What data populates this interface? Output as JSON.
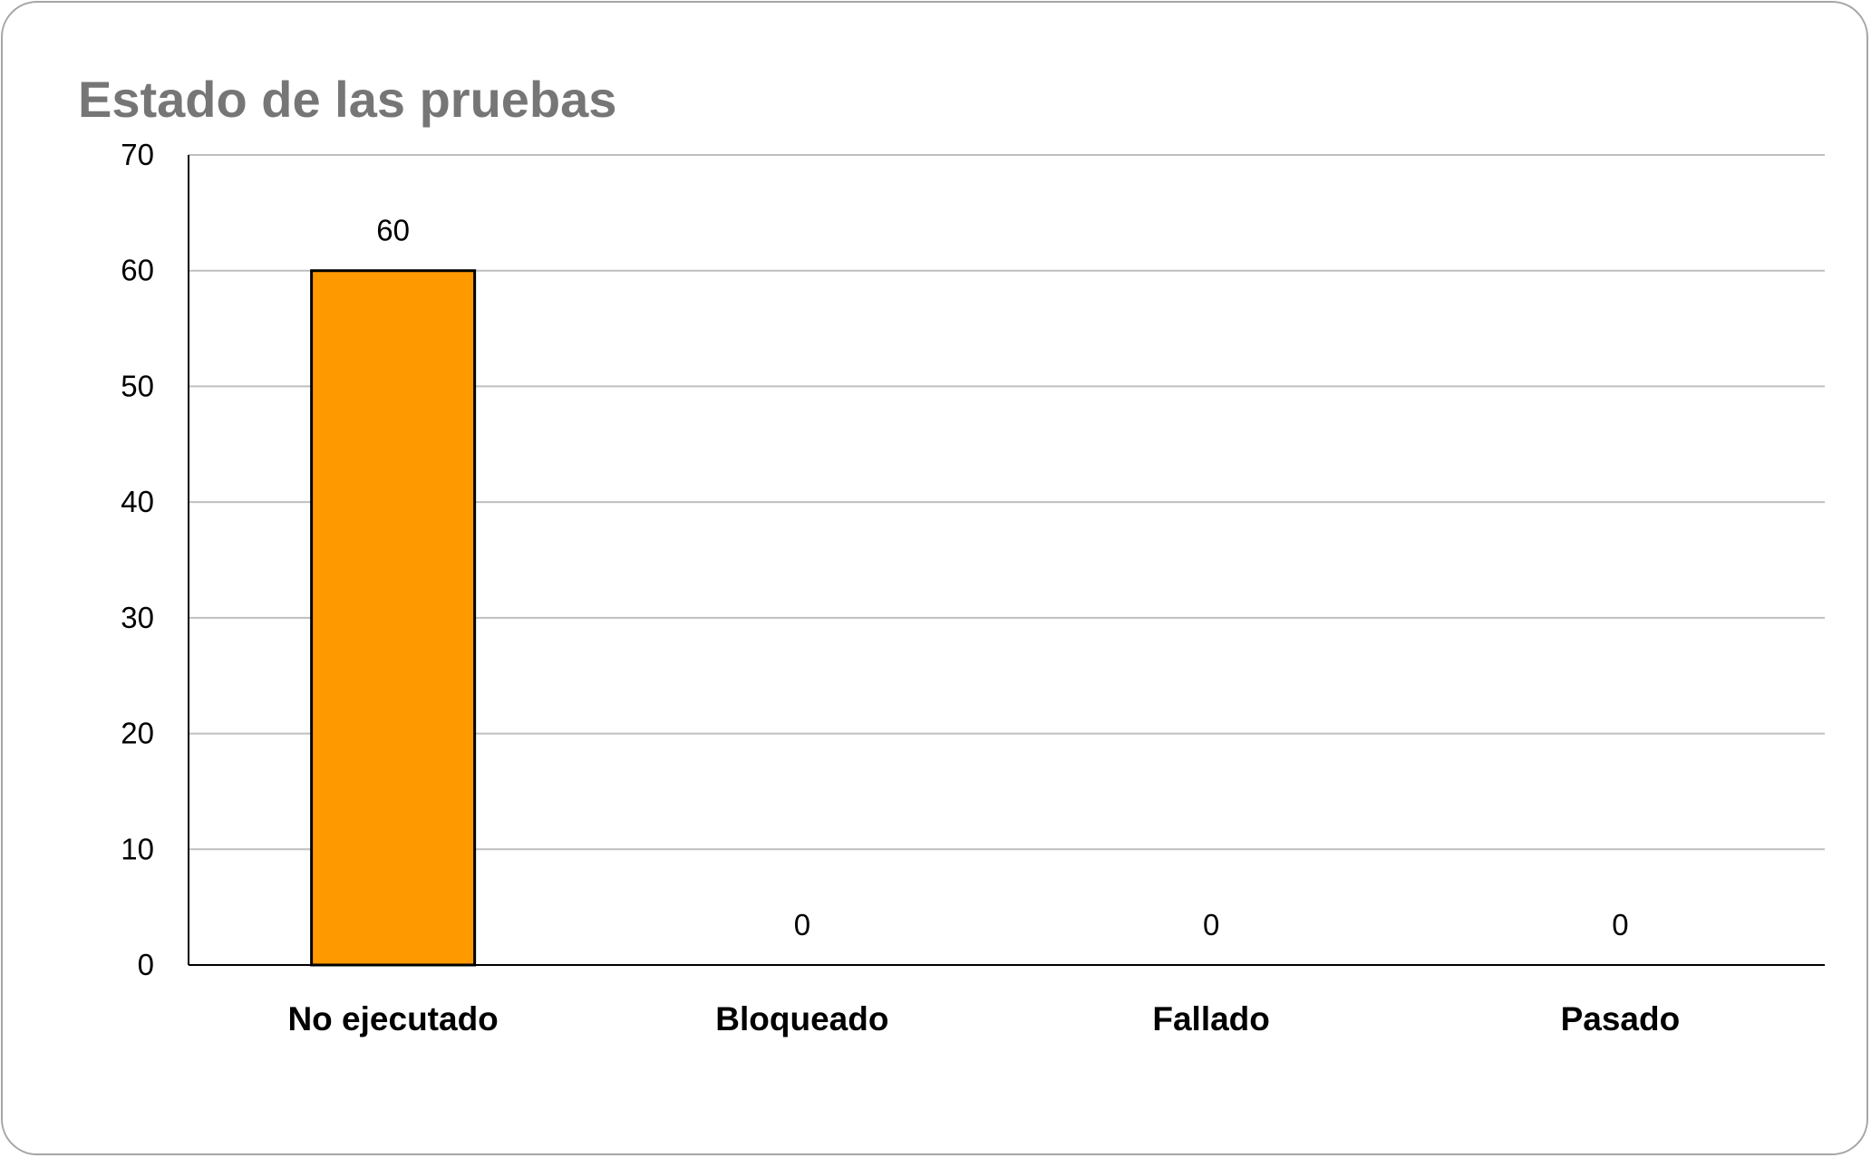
{
  "chart_data": {
    "type": "bar",
    "title": "Estado de las pruebas",
    "categories": [
      "No ejecutado",
      "Bloqueado",
      "Fallado",
      "Pasado"
    ],
    "values": [
      60,
      0,
      0,
      0
    ],
    "data_labels": [
      "60",
      "0",
      "0",
      "0"
    ],
    "xlabel": "",
    "ylabel": "",
    "ylim": [
      0,
      70
    ],
    "yticks": [
      0,
      10,
      20,
      30,
      40,
      50,
      60,
      70
    ],
    "grid": true,
    "legend": "none",
    "colors": {
      "bar_fill": "#ff9900",
      "bar_stroke": "#000000",
      "gridline": "#bfbfbf",
      "axis": "#000000",
      "title": "#767676"
    }
  }
}
